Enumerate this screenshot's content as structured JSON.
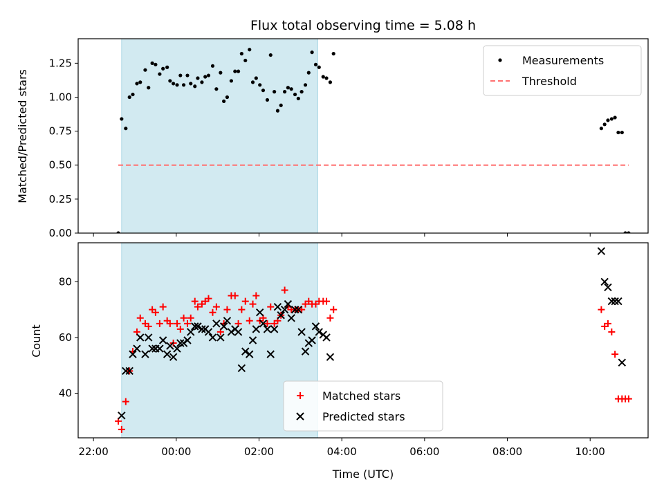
{
  "chart_data": {
    "type": "scatter",
    "title": "Flux total observing time = 5.08 h",
    "xlabel": "Time (UTC)",
    "x_unit": "hours",
    "x_tick_labels": [
      "22:00",
      "00:00",
      "02:00",
      "04:00",
      "06:00",
      "08:00",
      "10:00"
    ],
    "x_tick_values": [
      22,
      24,
      26,
      28,
      30,
      32,
      34
    ],
    "xlim": [
      21.63,
      35.4
    ],
    "shaded_span": [
      22.68,
      27.42
    ],
    "shaded_color": "#add8e6",
    "panels": [
      {
        "ylabel": "Matched/Predicted stars",
        "ylim": [
          0,
          1.43
        ],
        "y_tick_labels": [
          "0.00",
          "0.25",
          "0.50",
          "0.75",
          "1.00",
          "1.25"
        ],
        "y_tick_values": [
          0,
          0.25,
          0.5,
          0.75,
          1.0,
          1.25
        ],
        "legend_position": "top-right",
        "series": [
          {
            "name": "Measurements",
            "marker": "dot",
            "color": "#000000",
            "points": [
              [
                22.6,
                0.0
              ],
              [
                22.68,
                0.84
              ],
              [
                22.78,
                0.77
              ],
              [
                22.87,
                1.0
              ],
              [
                22.95,
                1.02
              ],
              [
                23.05,
                1.1
              ],
              [
                23.13,
                1.11
              ],
              [
                23.25,
                1.2
              ],
              [
                23.33,
                1.07
              ],
              [
                23.42,
                1.25
              ],
              [
                23.5,
                1.24
              ],
              [
                23.6,
                1.17
              ],
              [
                23.68,
                1.21
              ],
              [
                23.78,
                1.22
              ],
              [
                23.85,
                1.12
              ],
              [
                23.93,
                1.1
              ],
              [
                24.02,
                1.09
              ],
              [
                24.1,
                1.16
              ],
              [
                24.18,
                1.09
              ],
              [
                24.27,
                1.16
              ],
              [
                24.35,
                1.1
              ],
              [
                24.45,
                1.08
              ],
              [
                24.52,
                1.14
              ],
              [
                24.62,
                1.11
              ],
              [
                24.7,
                1.15
              ],
              [
                24.78,
                1.16
              ],
              [
                24.88,
                1.23
              ],
              [
                24.97,
                1.06
              ],
              [
                25.07,
                1.18
              ],
              [
                25.15,
                0.97
              ],
              [
                25.23,
                1.0
              ],
              [
                25.33,
                1.12
              ],
              [
                25.42,
                1.19
              ],
              [
                25.5,
                1.19
              ],
              [
                25.58,
                1.32
              ],
              [
                25.67,
                1.27
              ],
              [
                25.77,
                1.35
              ],
              [
                25.85,
                1.11
              ],
              [
                25.93,
                1.14
              ],
              [
                26.02,
                1.09
              ],
              [
                26.1,
                1.05
              ],
              [
                26.2,
                0.98
              ],
              [
                26.28,
                1.31
              ],
              [
                26.37,
                1.04
              ],
              [
                26.45,
                0.9
              ],
              [
                26.53,
                0.94
              ],
              [
                26.62,
                1.04
              ],
              [
                26.7,
                1.07
              ],
              [
                26.78,
                1.06
              ],
              [
                26.87,
                1.02
              ],
              [
                26.95,
                0.99
              ],
              [
                27.03,
                1.04
              ],
              [
                27.12,
                1.09
              ],
              [
                27.2,
                1.18
              ],
              [
                27.28,
                1.33
              ],
              [
                27.37,
                1.24
              ],
              [
                27.45,
                1.22
              ],
              [
                27.55,
                1.15
              ],
              [
                27.63,
                1.14
              ],
              [
                27.72,
                1.11
              ],
              [
                27.8,
                1.32
              ],
              [
                34.27,
                0.77
              ],
              [
                34.35,
                0.8
              ],
              [
                34.43,
                0.83
              ],
              [
                34.52,
                0.84
              ],
              [
                34.6,
                0.85
              ],
              [
                34.68,
                0.74
              ],
              [
                34.77,
                0.74
              ],
              [
                34.85,
                0.0
              ],
              [
                34.93,
                0.0
              ]
            ]
          },
          {
            "name": "Threshold",
            "style": "dashed",
            "color": "#ff7070",
            "points": [
              [
                22.6,
                0.5
              ],
              [
                34.93,
                0.5
              ]
            ]
          }
        ]
      },
      {
        "ylabel": "Count",
        "ylim": [
          24,
          94
        ],
        "y_tick_labels": [
          "40",
          "60",
          "80"
        ],
        "y_tick_values": [
          40,
          60,
          80
        ],
        "legend_position": "bottom-center",
        "series": [
          {
            "name": "Matched stars",
            "marker": "plus",
            "color": "#ff0000",
            "points": [
              [
                22.6,
                30
              ],
              [
                22.68,
                27
              ],
              [
                22.78,
                37
              ],
              [
                22.87,
                48
              ],
              [
                22.95,
                55
              ],
              [
                23.05,
                62
              ],
              [
                23.13,
                67
              ],
              [
                23.25,
                65
              ],
              [
                23.33,
                64
              ],
              [
                23.42,
                70
              ],
              [
                23.5,
                69
              ],
              [
                23.6,
                65
              ],
              [
                23.68,
                71
              ],
              [
                23.78,
                66
              ],
              [
                23.85,
                65
              ],
              [
                23.93,
                58
              ],
              [
                24.02,
                65
              ],
              [
                24.1,
                63
              ],
              [
                24.18,
                67
              ],
              [
                24.27,
                65
              ],
              [
                24.35,
                67
              ],
              [
                24.45,
                73
              ],
              [
                24.52,
                71
              ],
              [
                24.62,
                72
              ],
              [
                24.7,
                73
              ],
              [
                24.78,
                74
              ],
              [
                24.88,
                69
              ],
              [
                24.97,
                71
              ],
              [
                25.07,
                62
              ],
              [
                25.15,
                65
              ],
              [
                25.23,
                70
              ],
              [
                25.33,
                75
              ],
              [
                25.42,
                75
              ],
              [
                25.5,
                65
              ],
              [
                25.58,
                70
              ],
              [
                25.67,
                73
              ],
              [
                25.77,
                66
              ],
              [
                25.85,
                72
              ],
              [
                25.93,
                75
              ],
              [
                26.02,
                66
              ],
              [
                26.1,
                67
              ],
              [
                26.2,
                65
              ],
              [
                26.28,
                71
              ],
              [
                26.37,
                65
              ],
              [
                26.45,
                66
              ],
              [
                26.53,
                68
              ],
              [
                26.62,
                77
              ],
              [
                26.7,
                71
              ],
              [
                26.78,
                70
              ],
              [
                26.87,
                70
              ],
              [
                26.95,
                70
              ],
              [
                27.03,
                70
              ],
              [
                27.12,
                72
              ],
              [
                27.2,
                73
              ],
              [
                27.28,
                72
              ],
              [
                27.37,
                72
              ],
              [
                27.45,
                73
              ],
              [
                27.55,
                73
              ],
              [
                27.63,
                73
              ],
              [
                27.72,
                67
              ],
              [
                27.8,
                70
              ],
              [
                34.27,
                70
              ],
              [
                34.35,
                64
              ],
              [
                34.43,
                65
              ],
              [
                34.52,
                62
              ],
              [
                34.6,
                54
              ],
              [
                34.68,
                38
              ],
              [
                34.77,
                38
              ],
              [
                34.85,
                38
              ],
              [
                34.93,
                38
              ]
            ]
          },
          {
            "name": "Predicted stars",
            "marker": "x",
            "color": "#000000",
            "points": [
              [
                22.68,
                32
              ],
              [
                22.78,
                48
              ],
              [
                22.87,
                48
              ],
              [
                22.95,
                54
              ],
              [
                23.05,
                56
              ],
              [
                23.13,
                60
              ],
              [
                23.25,
                54
              ],
              [
                23.33,
                60
              ],
              [
                23.42,
                56
              ],
              [
                23.5,
                56
              ],
              [
                23.6,
                56
              ],
              [
                23.68,
                59
              ],
              [
                23.78,
                54
              ],
              [
                23.85,
                57
              ],
              [
                23.93,
                53
              ],
              [
                24.02,
                56
              ],
              [
                24.1,
                58
              ],
              [
                24.18,
                58
              ],
              [
                24.27,
                59
              ],
              [
                24.35,
                62
              ],
              [
                24.45,
                64
              ],
              [
                24.52,
                64
              ],
              [
                24.62,
                63
              ],
              [
                24.7,
                63
              ],
              [
                24.78,
                62
              ],
              [
                24.88,
                60
              ],
              [
                24.97,
                65
              ],
              [
                25.07,
                60
              ],
              [
                25.15,
                64
              ],
              [
                25.23,
                66
              ],
              [
                25.33,
                62
              ],
              [
                25.42,
                63
              ],
              [
                25.5,
                62
              ],
              [
                25.58,
                49
              ],
              [
                25.67,
                55
              ],
              [
                25.77,
                54
              ],
              [
                25.85,
                59
              ],
              [
                25.93,
                63
              ],
              [
                26.02,
                69
              ],
              [
                26.1,
                65
              ],
              [
                26.2,
                63
              ],
              [
                26.28,
                54
              ],
              [
                26.37,
                63
              ],
              [
                26.45,
                71
              ],
              [
                26.53,
                68
              ],
              [
                26.62,
                70
              ],
              [
                26.7,
                72
              ],
              [
                26.78,
                67
              ],
              [
                26.87,
                70
              ],
              [
                26.95,
                70
              ],
              [
                27.03,
                62
              ],
              [
                27.12,
                55
              ],
              [
                27.2,
                58
              ],
              [
                27.28,
                59
              ],
              [
                27.37,
                64
              ],
              [
                27.45,
                62
              ],
              [
                27.55,
                61
              ],
              [
                27.63,
                60
              ],
              [
                27.72,
                53
              ],
              [
                34.27,
                91
              ],
              [
                34.35,
                80
              ],
              [
                34.43,
                78
              ],
              [
                34.52,
                73
              ],
              [
                34.6,
                73
              ],
              [
                34.68,
                73
              ],
              [
                34.77,
                51
              ]
            ]
          }
        ]
      }
    ]
  }
}
